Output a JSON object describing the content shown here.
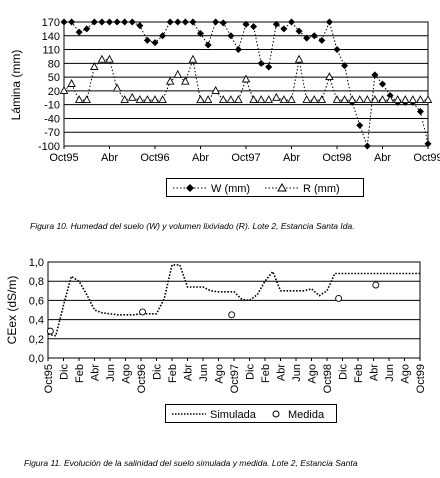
{
  "figure1": {
    "chart_data": {
      "type": "line",
      "ylabel": "Lámina (mm)",
      "ylim": [
        -100,
        170
      ],
      "yticks": [
        170,
        140,
        110,
        80,
        50,
        20,
        -10,
        -40,
        -70,
        -100
      ],
      "xticks": [
        "Oct95",
        "Abr",
        "Oct96",
        "Abr",
        "Oct97",
        "Abr",
        "Oct98",
        "Abr",
        "Oct99"
      ],
      "x_range": [
        0,
        48
      ],
      "series": [
        {
          "name": "W  (mm)",
          "marker": "diamond",
          "x": [
            0,
            1,
            2,
            3,
            4,
            5,
            6,
            7,
            8,
            9,
            10,
            11,
            12,
            13,
            14,
            15,
            16,
            17,
            18,
            19,
            20,
            21,
            22,
            23,
            24,
            25,
            26,
            27,
            28,
            29,
            30,
            31,
            32,
            33,
            34,
            35,
            36,
            37,
            38,
            39,
            40,
            41,
            42,
            43,
            44,
            45,
            46,
            47,
            48
          ],
          "values": [
            170,
            170,
            148,
            155,
            170,
            170,
            170,
            170,
            170,
            170,
            162,
            130,
            125,
            140,
            170,
            170,
            170,
            170,
            145,
            120,
            170,
            168,
            140,
            110,
            165,
            160,
            80,
            72,
            165,
            155,
            170,
            150,
            135,
            140,
            130,
            170,
            110,
            75,
            -5,
            -55,
            -100,
            55,
            35,
            10,
            -5,
            -5,
            -5,
            -25,
            -95
          ]
        },
        {
          "name": "R  (mm)",
          "marker": "triangle",
          "x": [
            0,
            1,
            2,
            3,
            4,
            5,
            6,
            7,
            8,
            9,
            10,
            11,
            12,
            13,
            14,
            15,
            16,
            17,
            18,
            19,
            20,
            21,
            22,
            23,
            24,
            25,
            26,
            27,
            28,
            29,
            30,
            31,
            32,
            33,
            34,
            35,
            36,
            37,
            38,
            39,
            40,
            41,
            42,
            43,
            44,
            45,
            46,
            47,
            48
          ],
          "values": [
            20,
            35,
            0,
            0,
            72,
            88,
            88,
            25,
            0,
            5,
            0,
            0,
            0,
            0,
            40,
            55,
            40,
            88,
            0,
            0,
            20,
            0,
            0,
            0,
            45,
            0,
            0,
            0,
            5,
            0,
            0,
            88,
            0,
            0,
            0,
            50,
            0,
            0,
            0,
            0,
            0,
            0,
            0,
            0,
            0,
            0,
            0,
            0,
            0
          ]
        }
      ]
    },
    "caption": "Figura 10. Humedad del suelo (W) y volumen lixiviado (R). Lote 2, Estancia Santa Ida."
  },
  "figure2": {
    "chart_data": {
      "type": "line",
      "ylabel": "CEex (dS/m)",
      "ylim": [
        0,
        1.0
      ],
      "yticks": [
        "1,0",
        "0,8",
        "0,6",
        "0,4",
        "0,2",
        "0,0"
      ],
      "ytick_values": [
        1.0,
        0.8,
        0.6,
        0.4,
        0.2,
        0.0
      ],
      "xticks": [
        "Oct95",
        "Dic",
        "Feb",
        "Abr",
        "Jun",
        "Ago",
        "Oct96",
        "Dic",
        "Feb",
        "Abr",
        "Jun",
        "Ago",
        "Oct97",
        "Dic",
        "Feb",
        "Abr",
        "Jun",
        "Ago",
        "Oct98",
        "Dic",
        "Feb",
        "Abr",
        "Jun",
        "Ago",
        "Oct99"
      ],
      "x_range": [
        0,
        48
      ],
      "series": [
        {
          "name": "Simulada",
          "style": "dotted-line",
          "x": [
            0,
            1,
            2,
            3,
            4,
            5,
            6,
            7,
            8,
            9,
            10,
            11,
            12,
            13,
            14,
            15,
            16,
            17,
            18,
            19,
            20,
            21,
            22,
            23,
            24,
            25,
            26,
            27,
            28,
            29,
            30,
            31,
            32,
            33,
            34,
            35,
            36,
            37,
            38,
            39,
            40,
            41,
            42,
            43,
            44,
            45,
            46,
            47,
            48
          ],
          "values": [
            0.25,
            0.23,
            0.55,
            0.85,
            0.8,
            0.66,
            0.5,
            0.47,
            0.46,
            0.45,
            0.45,
            0.45,
            0.46,
            0.46,
            0.46,
            0.62,
            0.97,
            0.97,
            0.74,
            0.74,
            0.74,
            0.7,
            0.69,
            0.69,
            0.69,
            0.61,
            0.6,
            0.66,
            0.8,
            0.9,
            0.7,
            0.7,
            0.7,
            0.7,
            0.72,
            0.65,
            0.7,
            0.88,
            0.88,
            0.88,
            0.88,
            0.88,
            0.88,
            0.88,
            0.88,
            0.88,
            0.88,
            0.88,
            0.88
          ]
        },
        {
          "name": "Medida",
          "style": "open-circle",
          "x": [
            0.3,
            12.2,
            23.7,
            37.5,
            42.3
          ],
          "values": [
            0.28,
            0.48,
            0.45,
            0.62,
            0.76
          ]
        }
      ]
    },
    "caption": "Figura 11. Evolución de la salinidad del suelo simulada y medida. Lote 2, Estancia Santa"
  }
}
